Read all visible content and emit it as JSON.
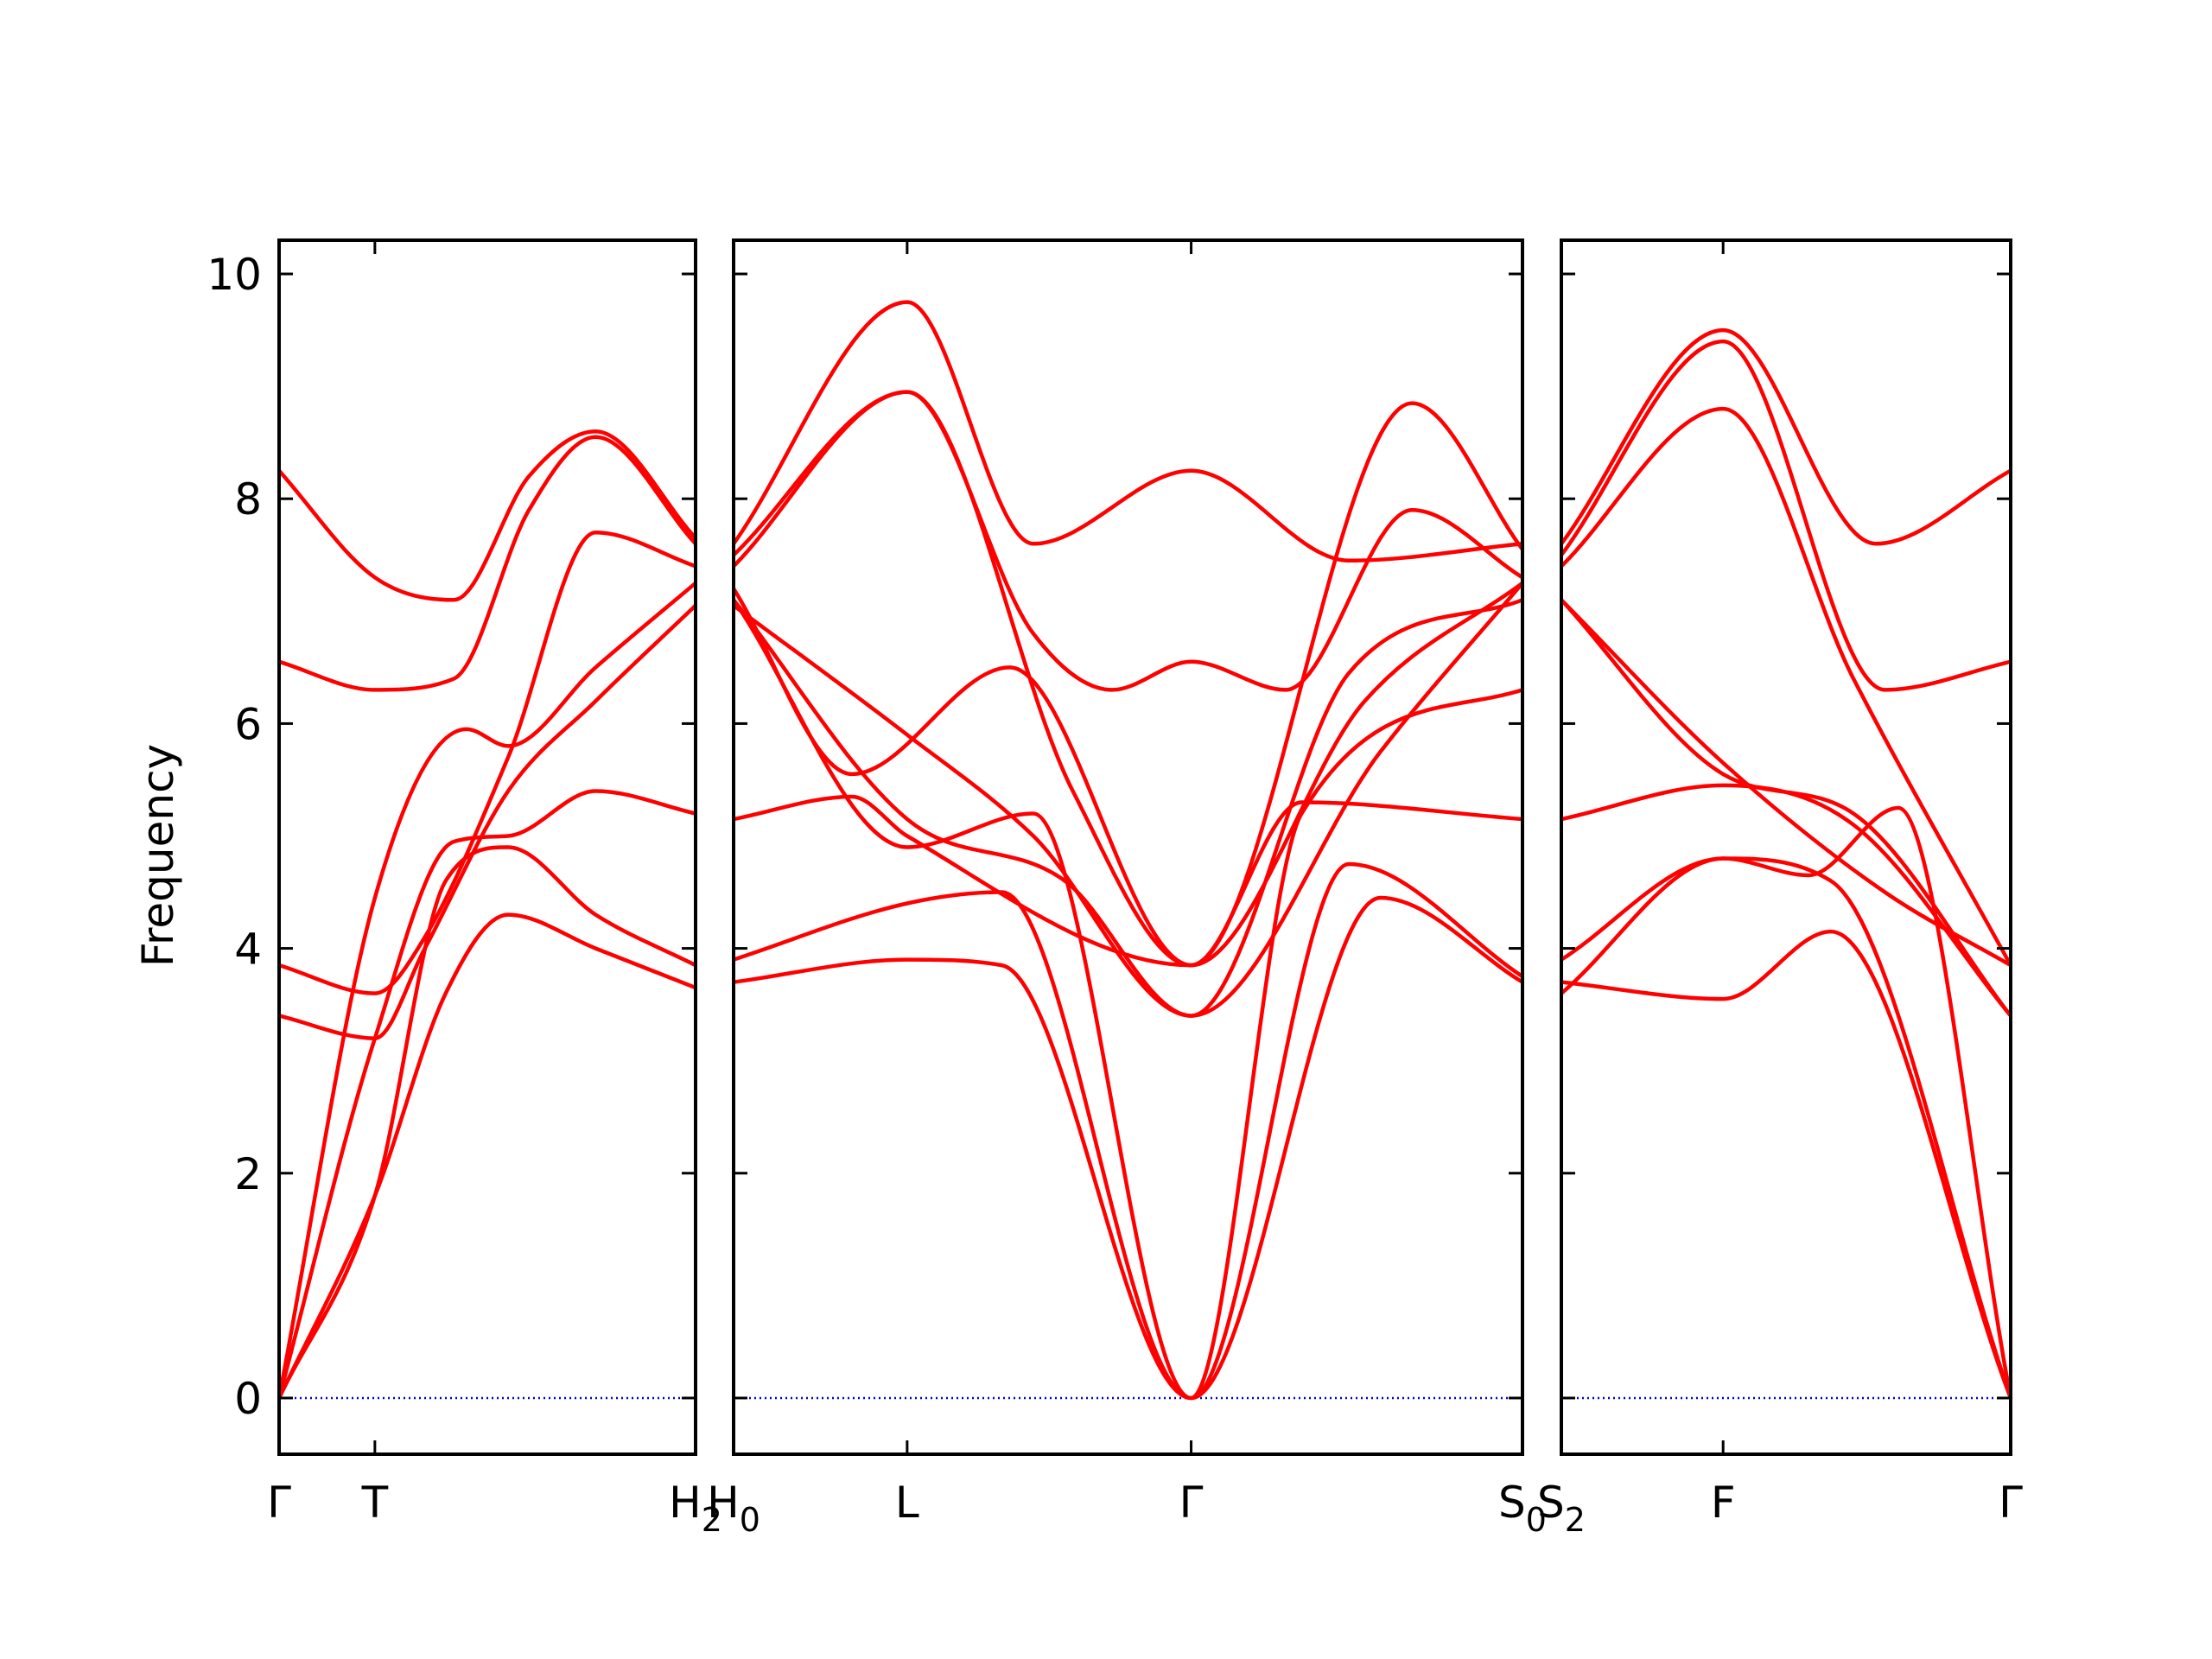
{
  "chart_data": {
    "type": "line",
    "ylabel": "Frequency",
    "ylim": [
      -0.5,
      10.3
    ],
    "yticks": [
      0,
      2,
      4,
      6,
      8,
      10
    ],
    "line_color": "#ff0000",
    "zero_line_color": "#0000cc",
    "panels": [
      {
        "xticks": [
          {
            "label": "Γ",
            "x": 0
          },
          {
            "label": "T",
            "x": 0.23
          },
          {
            "label": "H",
            "sub": "2",
            "x": 1
          }
        ],
        "series": [
          {
            "x": [
              0,
              0.23,
              0.42,
              0.6,
              0.76,
              1
            ],
            "y": [
              8.25,
              7.3,
              7.1,
              8.2,
              8.6,
              7.65
            ]
          },
          {
            "x": [
              0,
              0.23,
              0.42,
              0.6,
              0.76,
              1
            ],
            "y": [
              6.55,
              6.3,
              6.4,
              7.9,
              8.55,
              7.6
            ]
          },
          {
            "x": [
              0,
              0.23,
              0.35,
              0.55,
              0.76,
              1
            ],
            "y": [
              3.85,
              3.6,
              4.1,
              5.7,
              7.7,
              7.4
            ]
          },
          {
            "x": [
              0,
              0.23,
              0.35,
              0.55,
              0.76,
              1
            ],
            "y": [
              3.4,
              3.2,
              4.0,
              5.4,
              6.2,
              7.05
            ]
          },
          {
            "x": [
              0,
              0.23,
              0.45,
              0.55,
              0.76,
              1
            ],
            "y": [
              0,
              4.45,
              5.95,
              5.8,
              6.5,
              7.25
            ]
          },
          {
            "x": [
              0,
              0.23,
              0.42,
              0.55,
              0.76,
              1
            ],
            "y": [
              0,
              3.2,
              4.95,
              5.0,
              5.4,
              5.2
            ]
          },
          {
            "x": [
              0,
              0.23,
              0.4,
              0.55,
              0.76,
              1
            ],
            "y": [
              0,
              1.8,
              4.6,
              4.9,
              4.3,
              3.85
            ]
          },
          {
            "x": [
              0,
              0.23,
              0.4,
              0.55,
              0.76,
              1
            ],
            "y": [
              0,
              1.8,
              3.6,
              4.3,
              4.0,
              3.65
            ]
          }
        ]
      },
      {
        "xticks": [
          {
            "label": "H",
            "sub": "0",
            "x": 0
          },
          {
            "label": "L",
            "x": 0.22
          },
          {
            "label": "Γ",
            "x": 0.58
          },
          {
            "label": "S",
            "sub": "0",
            "x": 1
          }
        ],
        "series": [
          {
            "x": [
              0,
              0.22,
              0.38,
              0.58,
              0.78,
              1
            ],
            "y": [
              7.6,
              9.75,
              7.6,
              8.25,
              7.45,
              7.6
            ]
          },
          {
            "x": [
              0,
              0.22,
              0.38,
              0.48,
              0.58,
              0.7,
              0.86,
              1
            ],
            "y": [
              7.5,
              8.95,
              6.8,
              6.3,
              6.55,
              6.3,
              7.9,
              7.3
            ]
          },
          {
            "x": [
              0,
              0.22,
              0.43,
              0.58,
              0.86,
              1
            ],
            "y": [
              7.4,
              8.95,
              5.4,
              3.85,
              8.85,
              7.55
            ]
          },
          {
            "x": [
              0,
              0.15,
              0.35,
              0.58,
              0.8,
              1
            ],
            "y": [
              7.2,
              5.55,
              6.5,
              3.85,
              6.2,
              7.25
            ]
          },
          {
            "x": [
              0,
              0.22,
              0.38,
              0.58,
              0.78,
              1
            ],
            "y": [
              7.05,
              5.9,
              5.0,
              3.4,
              6.45,
              7.1
            ]
          },
          {
            "x": [
              0,
              0.22,
              0.42,
              0.58,
              0.82,
              1
            ],
            "y": [
              7.1,
              5.15,
              4.6,
              3.4,
              5.75,
              7.25
            ]
          },
          {
            "x": [
              0,
              0.15,
              0.22,
              0.58,
              0.72,
              1
            ],
            "y": [
              5.15,
              5.35,
              5.0,
              3.85,
              5.3,
              5.15
            ]
          },
          {
            "x": [
              0,
              0.22,
              0.34,
              0.58,
              0.78,
              1
            ],
            "y": [
              3.9,
              4.4,
              4.5,
              0,
              4.75,
              3.75
            ]
          },
          {
            "x": [
              0,
              0.22,
              0.34,
              0.58,
              0.82,
              1
            ],
            "y": [
              3.7,
              3.9,
              3.85,
              0,
              4.45,
              3.7
            ]
          },
          {
            "x": [
              0,
              0.22,
              0.38,
              0.58,
              0.72,
              1
            ],
            "y": [
              7.1,
              4.9,
              5.2,
              0,
              5.2,
              6.3
            ]
          }
        ]
      },
      {
        "xticks": [
          {
            "label": "S",
            "sub": "2",
            "x": 0
          },
          {
            "label": "F",
            "x": 0.36
          },
          {
            "label": "Γ",
            "x": 1
          }
        ],
        "series": [
          {
            "x": [
              0,
              0.36,
              0.7,
              1
            ],
            "y": [
              7.6,
              9.5,
              7.6,
              8.25
            ]
          },
          {
            "x": [
              0,
              0.36,
              0.72,
              1
            ],
            "y": [
              7.5,
              9.4,
              6.3,
              6.55
            ]
          },
          {
            "x": [
              0,
              0.36,
              0.65,
              1
            ],
            "y": [
              7.4,
              8.8,
              6.4,
              3.85
            ]
          },
          {
            "x": [
              0,
              0.36,
              0.65,
              1
            ],
            "y": [
              7.1,
              5.55,
              5.2,
              3.4
            ]
          },
          {
            "x": [
              0,
              0.36,
              0.72,
              1
            ],
            "y": [
              7.1,
              5.65,
              4.5,
              3.85
            ]
          },
          {
            "x": [
              0,
              0.36,
              0.65,
              1
            ],
            "y": [
              5.15,
              5.45,
              5.1,
              3.4
            ]
          },
          {
            "x": [
              0,
              0.36,
              0.55,
              0.75,
              1
            ],
            "y": [
              3.9,
              4.8,
              4.65,
              5.25,
              0
            ]
          },
          {
            "x": [
              0,
              0.36,
              0.6,
              1
            ],
            "y": [
              3.7,
              3.55,
              4.15,
              0
            ]
          },
          {
            "x": [
              0,
              0.36,
              0.6,
              1
            ],
            "y": [
              3.6,
              4.8,
              4.6,
              0
            ]
          }
        ]
      }
    ]
  }
}
